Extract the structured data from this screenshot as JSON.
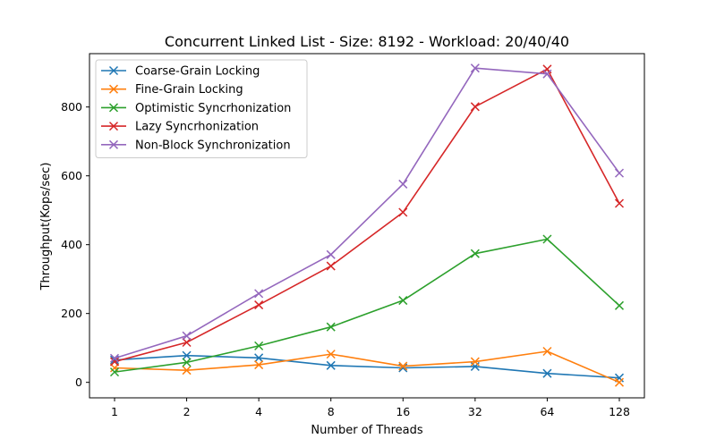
{
  "chart_data": {
    "type": "line",
    "title": "Concurrent Linked List - Size: 8192 - Workload: 20/40/40",
    "xlabel": "Number of Threads",
    "ylabel": "Throughput(Kops/sec)",
    "categories": [
      "1",
      "2",
      "4",
      "8",
      "16",
      "32",
      "64",
      "128"
    ],
    "ylim": [
      -45,
      955
    ],
    "yticks": [
      0,
      200,
      400,
      600,
      800
    ],
    "grid": false,
    "legend_position": "top-left",
    "marker": "x",
    "series": [
      {
        "name": "Coarse-Grain Locking",
        "color": "#1f77b4",
        "values": [
          65,
          78,
          71,
          49,
          42,
          46,
          26,
          13
        ]
      },
      {
        "name": "Fine-Grain Locking",
        "color": "#ff7f0e",
        "values": [
          42,
          35,
          51,
          82,
          47,
          60,
          90,
          0
        ]
      },
      {
        "name": "Optimistic Syncrhonization",
        "color": "#2ca02c",
        "values": [
          30,
          58,
          106,
          161,
          238,
          374,
          416,
          223
        ]
      },
      {
        "name": "Lazy Syncrhonization",
        "color": "#d62728",
        "values": [
          60,
          116,
          225,
          338,
          494,
          801,
          910,
          520
        ]
      },
      {
        "name": "Non-Block Synchronization",
        "color": "#9467bd",
        "values": [
          70,
          135,
          258,
          371,
          576,
          913,
          896,
          608
        ]
      }
    ]
  }
}
